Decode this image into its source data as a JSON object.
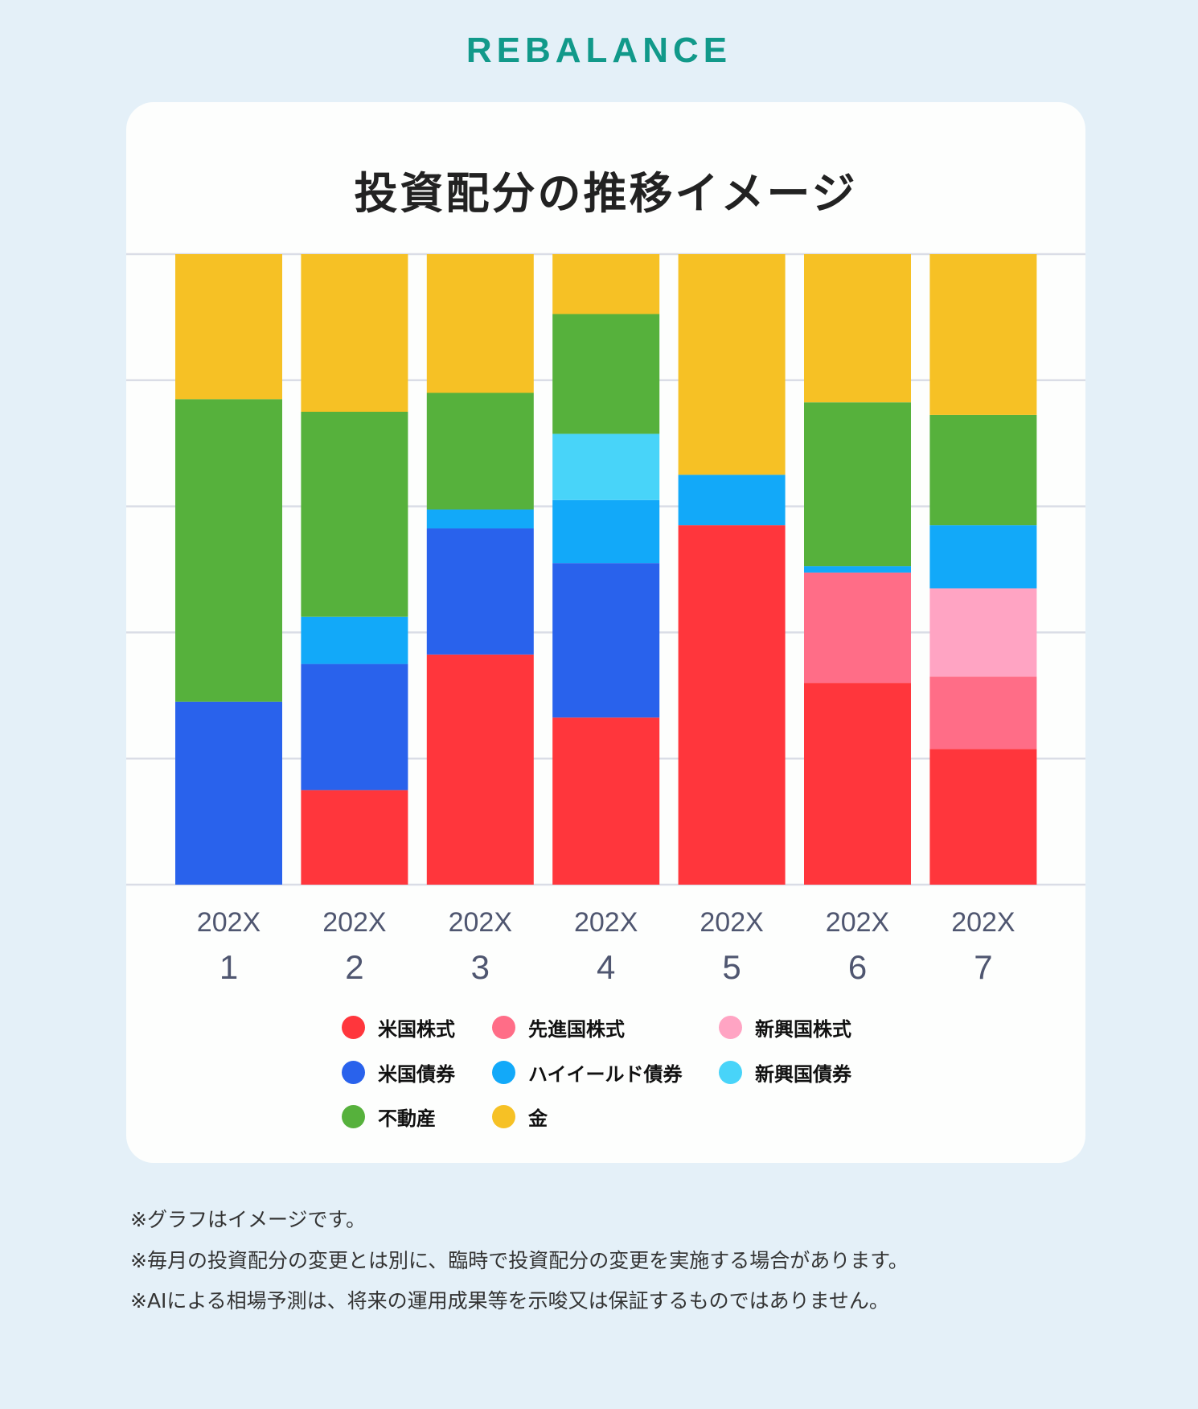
{
  "brand": "REBALANCE",
  "chart_data": {
    "type": "bar",
    "stacked": true,
    "title": "投資配分の推移イメージ",
    "categories": [
      "202X\n1",
      "202X\n2",
      "202X\n3",
      "202X\n4",
      "202X\n5",
      "202X\n6",
      "202X\n7"
    ],
    "category_lines": [
      [
        "202X",
        "1"
      ],
      [
        "202X",
        "2"
      ],
      [
        "202X",
        "3"
      ],
      [
        "202X",
        "4"
      ],
      [
        "202X",
        "5"
      ],
      [
        "202X",
        "6"
      ],
      [
        "202X",
        "7"
      ]
    ],
    "ylim": [
      0,
      100
    ],
    "grid": true,
    "y_tick_labels_shown": false,
    "legend_position": "bottom",
    "series": [
      {
        "name": "米国株式",
        "color": "#FF363C",
        "values": [
          0,
          15,
          36.5,
          26.5,
          57,
          32,
          21.5
        ]
      },
      {
        "name": "先進国株式",
        "color": "#FF6D87",
        "values": [
          0,
          0,
          0,
          0,
          0,
          17.5,
          11.5
        ]
      },
      {
        "name": "新興国株式",
        "color": "#FFA4C3",
        "values": [
          0,
          0,
          0,
          0,
          0,
          0,
          14
        ]
      },
      {
        "name": "米国債券",
        "color": "#2962EC",
        "values": [
          29,
          20,
          20,
          24.5,
          0,
          0,
          0
        ]
      },
      {
        "name": "ハイイールド債券",
        "color": "#12A9F9",
        "values": [
          0,
          7.5,
          3,
          10,
          8,
          1,
          10
        ]
      },
      {
        "name": "新興国債券",
        "color": "#48D4F9",
        "values": [
          0,
          0,
          0,
          10.5,
          0,
          0,
          0
        ]
      },
      {
        "name": "不動産",
        "color": "#56B13C",
        "values": [
          48,
          32.5,
          18.5,
          19,
          0,
          26,
          17.5
        ]
      },
      {
        "name": "金",
        "color": "#F6C125",
        "values": [
          23,
          25,
          22,
          9.5,
          35,
          23.5,
          25.5
        ]
      }
    ],
    "legend_order": [
      "米国株式",
      "先進国株式",
      "新興国株式",
      "米国債券",
      "ハイイールド債券",
      "新興国債券",
      "不動産",
      "金"
    ]
  },
  "notes": [
    "※グラフはイメージです。",
    "※毎月の投資配分の変更とは別に、臨時で投資配分の変更を実施する場合があります。",
    "※AIによる相場予測は、将来の運用成果等を示唆又は保証するものではありません。"
  ]
}
